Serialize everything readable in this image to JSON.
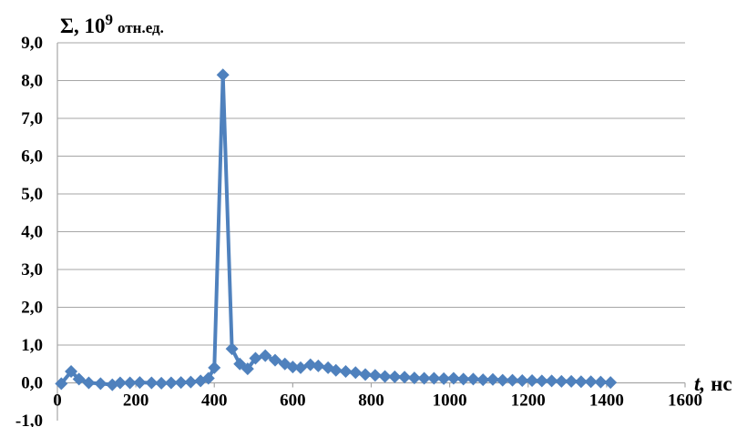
{
  "chart_data": {
    "type": "line",
    "title": "",
    "ylabel": {
      "symbol": "Σ, 10",
      "exponent": "9",
      "unit": "отн.ед."
    },
    "xlabel": {
      "symbol": "t,",
      "unit": "нс"
    },
    "xlim": [
      0,
      1600
    ],
    "ylim": [
      -1,
      9
    ],
    "x_ticks": [
      0,
      200,
      400,
      600,
      800,
      1000,
      1200,
      1400,
      1600
    ],
    "x_tick_labels": [
      "0",
      "200",
      "400",
      "600",
      "800",
      "1000",
      "1200",
      "1400",
      "1600"
    ],
    "y_ticks": [
      -1,
      0,
      1,
      2,
      3,
      4,
      5,
      6,
      7,
      8,
      9
    ],
    "y_tick_labels": [
      "-1,0",
      "0,0",
      "1,0",
      "2,0",
      "3,0",
      "4,0",
      "5,0",
      "6,0",
      "7,0",
      "8,0",
      "9,0"
    ],
    "grid": "horizontal",
    "series": [
      {
        "color": "#4f81bd",
        "marker": "diamond",
        "points": [
          [
            10,
            -0.02
          ],
          [
            35,
            0.3
          ],
          [
            55,
            0.1
          ],
          [
            80,
            0.0
          ],
          [
            110,
            -0.02
          ],
          [
            140,
            -0.05
          ],
          [
            160,
            0.0
          ],
          [
            185,
            0.0
          ],
          [
            210,
            0.01
          ],
          [
            240,
            0.0
          ],
          [
            265,
            -0.01
          ],
          [
            290,
            0.0
          ],
          [
            315,
            0.01
          ],
          [
            340,
            0.02
          ],
          [
            365,
            0.05
          ],
          [
            385,
            0.12
          ],
          [
            400,
            0.4
          ],
          [
            422,
            8.15
          ],
          [
            445,
            0.9
          ],
          [
            465,
            0.5
          ],
          [
            485,
            0.37
          ],
          [
            505,
            0.65
          ],
          [
            530,
            0.72
          ],
          [
            555,
            0.6
          ],
          [
            580,
            0.5
          ],
          [
            600,
            0.42
          ],
          [
            620,
            0.4
          ],
          [
            645,
            0.48
          ],
          [
            665,
            0.45
          ],
          [
            690,
            0.4
          ],
          [
            710,
            0.33
          ],
          [
            735,
            0.3
          ],
          [
            760,
            0.27
          ],
          [
            785,
            0.22
          ],
          [
            810,
            0.2
          ],
          [
            835,
            0.17
          ],
          [
            860,
            0.16
          ],
          [
            885,
            0.15
          ],
          [
            910,
            0.13
          ],
          [
            935,
            0.12
          ],
          [
            960,
            0.12
          ],
          [
            985,
            0.11
          ],
          [
            1010,
            0.12
          ],
          [
            1035,
            0.1
          ],
          [
            1060,
            0.1
          ],
          [
            1085,
            0.08
          ],
          [
            1110,
            0.09
          ],
          [
            1135,
            0.07
          ],
          [
            1160,
            0.07
          ],
          [
            1185,
            0.06
          ],
          [
            1210,
            0.06
          ],
          [
            1235,
            0.05
          ],
          [
            1260,
            0.05
          ],
          [
            1285,
            0.04
          ],
          [
            1310,
            0.04
          ],
          [
            1335,
            0.03
          ],
          [
            1360,
            0.03
          ],
          [
            1385,
            0.02
          ],
          [
            1410,
            0.01
          ]
        ]
      }
    ]
  }
}
